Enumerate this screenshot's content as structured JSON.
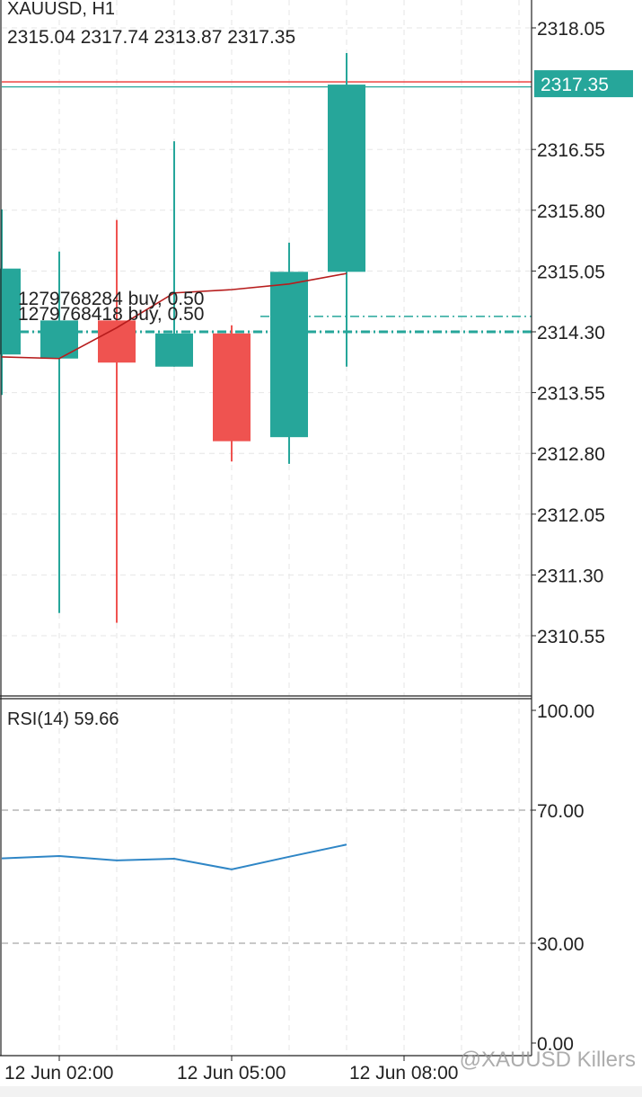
{
  "chart_data": {
    "type": "candlestick",
    "symbol": "XAUUSD, H1",
    "ohlc_label": "2315.04 2317.74 2313.87 2317.35",
    "price_axis": {
      "ticks": [
        "2318.05",
        "2316.55",
        "2315.80",
        "2315.05",
        "2314.30",
        "2313.55",
        "2312.80",
        "2312.05",
        "2311.30",
        "2310.55"
      ],
      "range": [
        2309.75,
        2318.45
      ]
    },
    "current_price": {
      "value": 2317.35,
      "label": "2317.35",
      "bid_line_color": "#ef5350",
      "ask_line_color": "#26a69a",
      "ask_value": 2317.3
    },
    "candles": [
      {
        "x": 0,
        "open": 2314.02,
        "high": 2315.81,
        "low": 2313.52,
        "close": 2315.08,
        "partial": true
      },
      {
        "x": 1,
        "open": 2313.97,
        "high": 2315.29,
        "low": 2310.83,
        "close": 2314.44
      },
      {
        "x": 2,
        "open": 2314.44,
        "high": 2315.68,
        "low": 2310.71,
        "close": 2313.92
      },
      {
        "x": 3,
        "open": 2313.87,
        "high": 2316.65,
        "low": 2313.87,
        "close": 2314.28
      },
      {
        "x": 4,
        "open": 2314.28,
        "high": 2314.38,
        "low": 2312.7,
        "close": 2312.95
      },
      {
        "x": 5,
        "open": 2313.0,
        "high": 2315.4,
        "low": 2312.67,
        "close": 2315.04
      },
      {
        "x": 6,
        "open": 2315.04,
        "high": 2317.74,
        "low": 2313.87,
        "close": 2317.35
      }
    ],
    "moving_average": {
      "color": "#b71c1c",
      "values": [
        2313.99,
        2313.97,
        2314.35,
        2314.78,
        2314.82,
        2314.89,
        2315.02
      ]
    },
    "orders": [
      {
        "id": "1279768284",
        "label": "1279768284 buy, 0.50",
        "price": 2314.49
      },
      {
        "id": "1279768418",
        "label": "1279768418 buy, 0.50",
        "price": 2314.3
      }
    ],
    "rsi": {
      "label": "RSI(14) 59.66",
      "ticks": [
        "100.00",
        "70.00",
        "30.00",
        "0.00"
      ],
      "levels": [
        70,
        30
      ],
      "range": [
        0,
        100
      ],
      "color": "#2f86c6",
      "values": [
        55.5,
        56.2,
        54.9,
        55.4,
        52.2,
        56.0,
        59.66
      ]
    },
    "time_axis": {
      "labels": [
        {
          "x": 1,
          "text": "12 Jun 02:00"
        },
        {
          "x": 4,
          "text": "12 Jun 05:00"
        },
        {
          "x": 7,
          "text": "12 Jun 08:00"
        }
      ]
    },
    "watermark": "@XAUUSD  Killers",
    "colors": {
      "bull": "#26a69a",
      "bear": "#ef5350",
      "grid": "#e6e6e6",
      "axis": "#333333"
    }
  }
}
